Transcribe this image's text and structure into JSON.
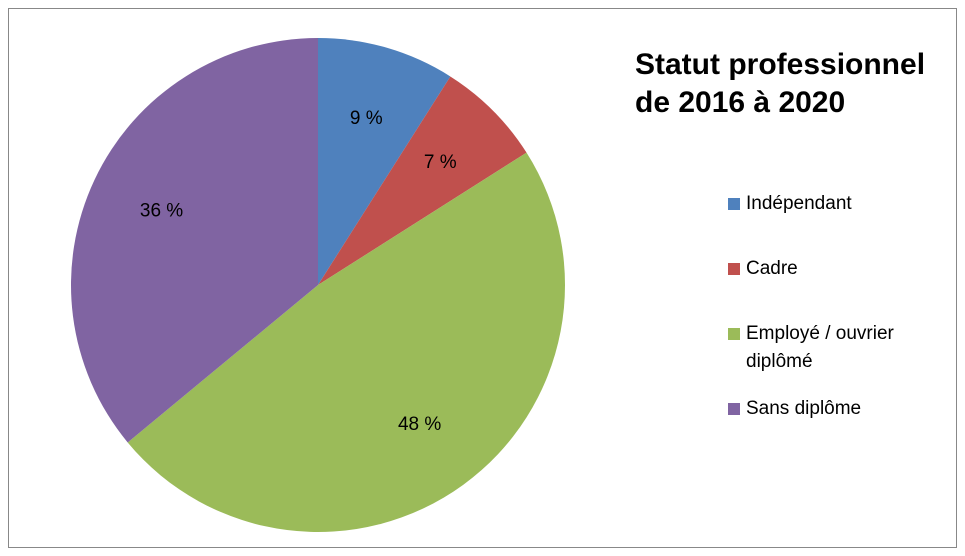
{
  "chart_data": {
    "type": "pie",
    "title": "Statut professionnel de 2016 à 2020",
    "categories": [
      "Indépendant",
      "Cadre",
      "Employé / ouvrier diplômé",
      "Sans diplôme"
    ],
    "values": [
      9,
      7,
      48,
      36
    ],
    "value_labels": [
      "9 %",
      "7 %",
      "48 %",
      "36 %"
    ],
    "colors": [
      "#4f81bd",
      "#c0504d",
      "#9bbb59",
      "#8064a2"
    ],
    "legend": "right"
  }
}
